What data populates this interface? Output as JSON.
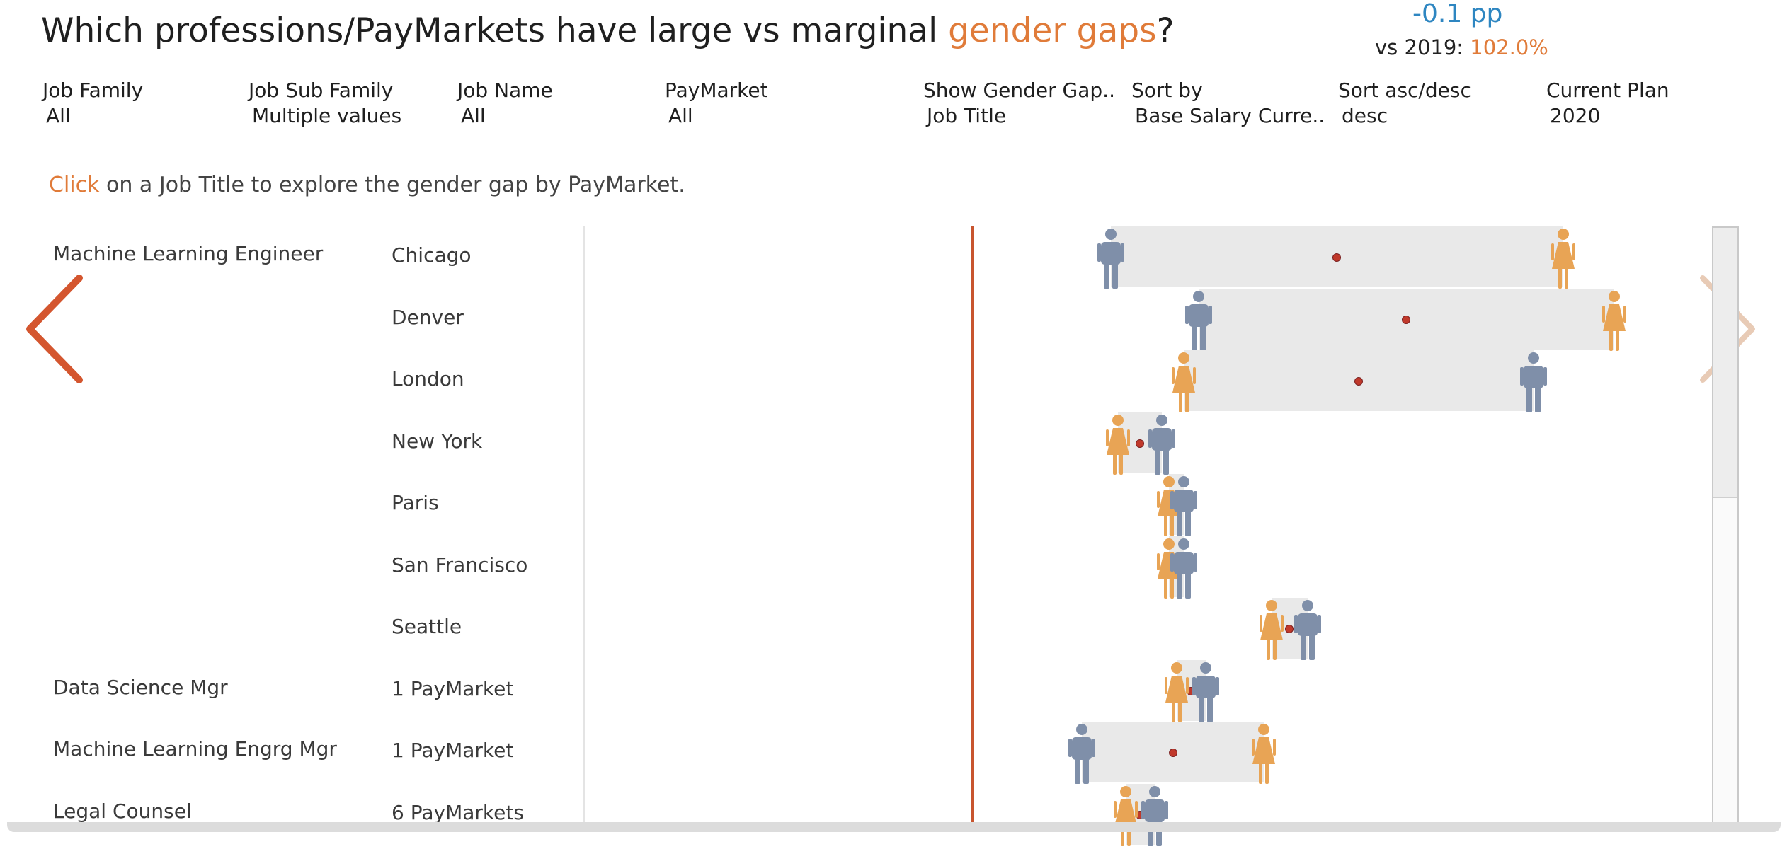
{
  "header": {
    "title_prefix": "Which professions/PayMarkets have large vs marginal ",
    "title_accent": "gender gaps",
    "title_suffix": "?",
    "kpi_top": "-0.1 pp",
    "kpi_vs_label": "vs 2019: ",
    "kpi_vs_value": "102.0%"
  },
  "filters": [
    {
      "label": "Job Family",
      "value": "All"
    },
    {
      "label": "Job Sub Family",
      "value": "Multiple values"
    },
    {
      "label": "Job Name",
      "value": "All"
    },
    {
      "label": "PayMarket",
      "value": "All"
    },
    {
      "label": "Show Gender Gap..",
      "value": "Job Title"
    },
    {
      "label": "Sort by",
      "value": "Base Salary Curre.."
    },
    {
      "label": "Sort asc/desc",
      "value": "desc"
    },
    {
      "label": "Current Plan",
      "value": "2020"
    }
  ],
  "instruction": {
    "click": "Click",
    "rest": " on a Job Title to explore the gender gap by PayMarket."
  },
  "rows": [
    {
      "job": "Machine Learning Engineer",
      "paymarket": "Chicago",
      "male": 1.0,
      "female": 1.62
    },
    {
      "job": "",
      "paymarket": "Denver",
      "male": 1.12,
      "female": 1.69
    },
    {
      "job": "",
      "paymarket": "London",
      "male": 1.58,
      "female": 1.1
    },
    {
      "job": "",
      "paymarket": "New York",
      "male": 1.07,
      "female": 1.01
    },
    {
      "job": "",
      "paymarket": "Paris",
      "male": 1.1,
      "female": 1.08
    },
    {
      "job": "",
      "paymarket": "San Francisco",
      "male": 1.1,
      "female": 1.08
    },
    {
      "job": "",
      "paymarket": "Seattle",
      "male": 1.27,
      "female": 1.22
    },
    {
      "job": "Data Science Mgr",
      "paymarket": "1 PayMarket",
      "male": 1.13,
      "female": 1.09
    },
    {
      "job": "Machine Learning Engrg Mgr",
      "paymarket": "1 PayMarket",
      "male": 0.96,
      "female": 1.21
    },
    {
      "job": "Legal Counsel",
      "paymarket": "6 PayMarkets",
      "male": 1.06,
      "female": 1.02
    }
  ],
  "colors": {
    "male": "#7f8fa9",
    "female": "#e8a455",
    "accent": "#e07b39",
    "kpi": "#2e86c1",
    "refline": "#c8552f"
  }
}
